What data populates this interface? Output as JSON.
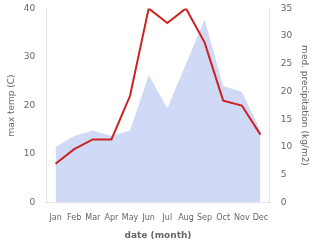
{
  "chart_data": {
    "type": "line",
    "xlabel": "date (month)",
    "ylabel": "max temp (C)",
    "y2label": "med. precipitation (kg/m2)",
    "categories": [
      "Jan",
      "Feb",
      "Mar",
      "Apr",
      "May",
      "Jun",
      "Jul",
      "Aug",
      "Sep",
      "Oct",
      "Nov",
      "Dec"
    ],
    "series": [
      {
        "type": "area",
        "color": "#aabbee",
        "axis": "y2",
        "values": [
          10,
          12,
          13,
          12,
          13,
          23,
          17,
          25,
          33,
          21,
          20,
          13
        ]
      },
      {
        "type": "line",
        "color": "#cc2222",
        "values": [
          8,
          11,
          13,
          13,
          22,
          40,
          37,
          40,
          33,
          21,
          20,
          14
        ]
      }
    ],
    "ylim": [
      0,
      40
    ],
    "yticks": [
      0,
      10,
      20,
      30,
      40
    ],
    "y2lim": [
      0,
      35
    ],
    "y2ticks": [
      0,
      5,
      10,
      15,
      20,
      25,
      30,
      35
    ],
    "grid": false
  }
}
